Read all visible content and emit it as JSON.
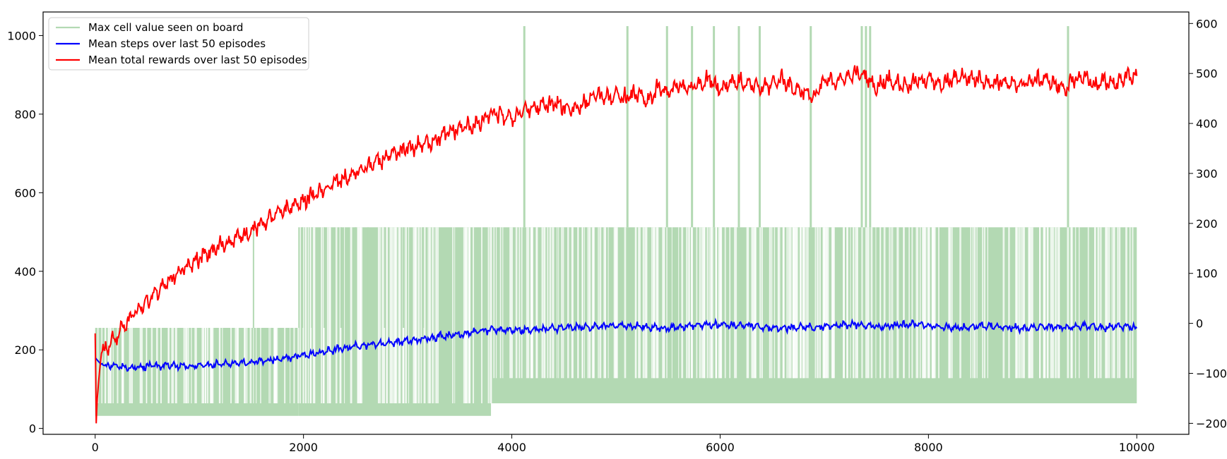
{
  "chart_data": {
    "type": "line",
    "title": "",
    "xlabel": "",
    "ylabel": "",
    "y2label": "",
    "grid": false,
    "legend_position": "upper-left",
    "x_range": [
      -500,
      10500
    ],
    "x_ticks": [
      0,
      2000,
      4000,
      6000,
      8000,
      10000
    ],
    "y_left": {
      "range": [
        -15,
        1060
      ],
      "ticks": [
        0,
        200,
        400,
        600,
        800,
        1000
      ]
    },
    "y_right": {
      "range": [
        -222,
        623
      ],
      "ticks": [
        -200,
        -100,
        0,
        100,
        200,
        300,
        400,
        500,
        600
      ]
    },
    "series": [
      {
        "name": "Max cell value seen on board",
        "axis": "left",
        "style": "noisy-band",
        "color": "#b3d9b3",
        "levels": [
          32,
          64,
          128,
          256,
          512,
          1024
        ],
        "x_end": 10000,
        "bands": [
          {
            "x_start": 0,
            "x_end": 1950,
            "low": 32,
            "high": 256
          },
          {
            "x_start": 1950,
            "x_end": 3800,
            "low": 32,
            "high": 512
          },
          {
            "x_start": 3800,
            "x_end": 10000,
            "low": 64,
            "high": 512
          }
        ],
        "spikes_x": [
          1520,
          1990,
          2080,
          2200,
          2360,
          2500,
          2620,
          2780,
          2960,
          3150
        ],
        "peaks_1024_x": [
          4120,
          5110,
          5490,
          5730,
          5940,
          6180,
          6380,
          6870,
          7360,
          7400,
          7440,
          9340
        ]
      },
      {
        "name": "Mean steps over last 50 episodes",
        "axis": "left",
        "color": "#0000ff",
        "x": [
          0,
          50,
          100,
          200,
          300,
          500,
          700,
          900,
          1100,
          1300,
          1500,
          1700,
          1900,
          2100,
          2300,
          2500,
          2700,
          2900,
          3100,
          3300,
          3500,
          3700,
          3900,
          4100,
          4300,
          4500,
          4700,
          4900,
          5100,
          5300,
          5500,
          5700,
          5900,
          6100,
          6300,
          6500,
          6700,
          6900,
          7100,
          7300,
          7500,
          7700,
          7900,
          8100,
          8300,
          8500,
          8700,
          8900,
          9100,
          9300,
          9500,
          9700,
          9900,
          10000
        ],
        "values": [
          180,
          165,
          158,
          160,
          155,
          158,
          160,
          158,
          162,
          165,
          168,
          175,
          182,
          190,
          200,
          210,
          215,
          220,
          225,
          235,
          240,
          248,
          252,
          250,
          253,
          256,
          258,
          260,
          262,
          258,
          255,
          262,
          265,
          262,
          262,
          255,
          258,
          256,
          262,
          265,
          260,
          262,
          265,
          258,
          255,
          262,
          258,
          255,
          258,
          258,
          262,
          255,
          262,
          255
        ]
      },
      {
        "name": "Mean total rewards over last 50 episodes",
        "axis": "right",
        "color": "#ff0000",
        "x": [
          0,
          10,
          20,
          40,
          60,
          100,
          150,
          200,
          300,
          400,
          500,
          600,
          700,
          800,
          900,
          1000,
          1100,
          1200,
          1300,
          1400,
          1500,
          1600,
          1700,
          1800,
          1900,
          2000,
          2100,
          2200,
          2300,
          2400,
          2500,
          2600,
          2700,
          2800,
          2900,
          3000,
          3100,
          3200,
          3300,
          3400,
          3500,
          3600,
          3700,
          3800,
          3900,
          4000,
          4100,
          4200,
          4300,
          4400,
          4500,
          4600,
          4700,
          4800,
          4900,
          5000,
          5100,
          5200,
          5300,
          5400,
          5500,
          5600,
          5700,
          5800,
          5900,
          6000,
          6100,
          6200,
          6300,
          6400,
          6500,
          6600,
          6700,
          6800,
          6900,
          7000,
          7100,
          7200,
          7300,
          7400,
          7500,
          7600,
          7700,
          7800,
          7900,
          8000,
          8100,
          8200,
          8300,
          8400,
          8500,
          8600,
          8700,
          8800,
          8900,
          9000,
          9100,
          9200,
          9300,
          9400,
          9500,
          9600,
          9700,
          9800,
          9900,
          10000
        ],
        "values": [
          -20,
          -200,
          -150,
          -100,
          -60,
          -50,
          -40,
          -30,
          0,
          25,
          45,
          65,
          85,
          100,
          115,
          130,
          142,
          155,
          165,
          175,
          185,
          200,
          212,
          225,
          235,
          245,
          258,
          265,
          282,
          290,
          300,
          312,
          322,
          332,
          340,
          350,
          355,
          362,
          372,
          382,
          390,
          395,
          400,
          420,
          415,
          410,
          425,
          430,
          435,
          440,
          432,
          430,
          440,
          458,
          450,
          455,
          450,
          462,
          440,
          470,
          462,
          475,
          470,
          480,
          490,
          468,
          485,
          482,
          475,
          470,
          480,
          490,
          470,
          465,
          450,
          485,
          485,
          490,
          500,
          495,
          470,
          490,
          480,
          475,
          485,
          490,
          475,
          485,
          495,
          490,
          490,
          480,
          485,
          475,
          480,
          485,
          490,
          480,
          470,
          485,
          495,
          475,
          485,
          480,
          495,
          495
        ]
      }
    ]
  }
}
